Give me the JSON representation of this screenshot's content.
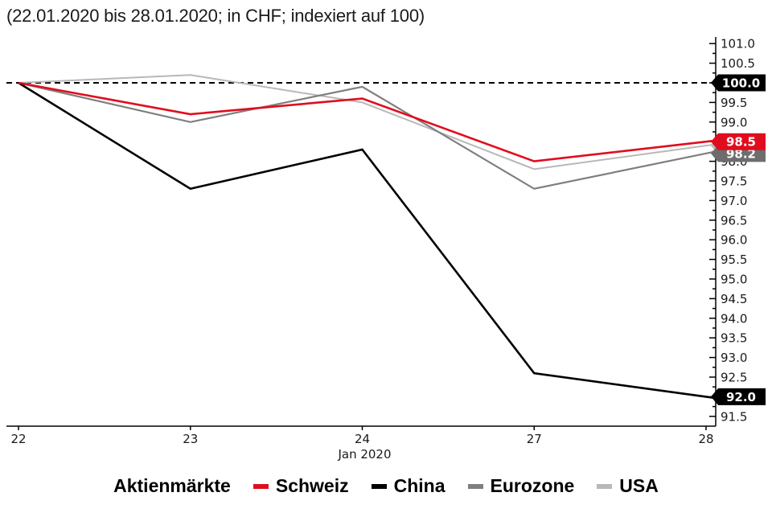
{
  "chart_data": {
    "type": "line",
    "title": "(22.01.2020 bis 28.01.2020; in CHF; indexiert auf 100)",
    "x_axis": {
      "categories": [
        "22",
        "23",
        "24",
        "27",
        "28"
      ],
      "sub_label": "Jan 2020"
    },
    "y_axis": {
      "side": "right",
      "min": 91.5,
      "max": 101.0,
      "tick_step": 0.5,
      "minor_tick_step": 0.25,
      "tick_decimals": 1
    },
    "reference_line": {
      "value": 100.0,
      "style": "dashed",
      "color": "#000000"
    },
    "series": [
      {
        "name": "USA",
        "color": "#b8b8b8",
        "width": 2,
        "values": [
          100.0,
          100.2,
          99.5,
          97.8,
          98.4
        ]
      },
      {
        "name": "Eurozone",
        "color": "#7f7f7f",
        "width": 2.2,
        "values": [
          100.0,
          99.0,
          99.9,
          97.3,
          98.2
        ]
      },
      {
        "name": "China",
        "color": "#000000",
        "width": 2.6,
        "values": [
          100.0,
          97.3,
          98.3,
          92.6,
          92.0
        ]
      },
      {
        "name": "Schweiz",
        "color": "#e00d1f",
        "width": 2.6,
        "values": [
          100.0,
          99.2,
          99.6,
          98.0,
          98.5
        ]
      }
    ],
    "end_badges": [
      {
        "label": "98.4",
        "value": 98.4,
        "bg": "#b8b8b8"
      },
      {
        "label": "98.2",
        "value": 98.2,
        "bg": "#6d6d6d"
      },
      {
        "label": "98.5",
        "value": 98.5,
        "bg": "#e00d1f"
      },
      {
        "label": "100.0",
        "value": 100.0,
        "bg": "#000000"
      },
      {
        "label": "92.0",
        "value": 92.0,
        "bg": "#000000"
      }
    ],
    "legend": {
      "heading": "Aktienmärkte",
      "entries": [
        {
          "name": "Schweiz",
          "color": "#e00d1f"
        },
        {
          "name": "China",
          "color": "#000000"
        },
        {
          "name": "Eurozone",
          "color": "#7f7f7f"
        },
        {
          "name": "USA",
          "color": "#b8b8b8"
        }
      ]
    }
  }
}
